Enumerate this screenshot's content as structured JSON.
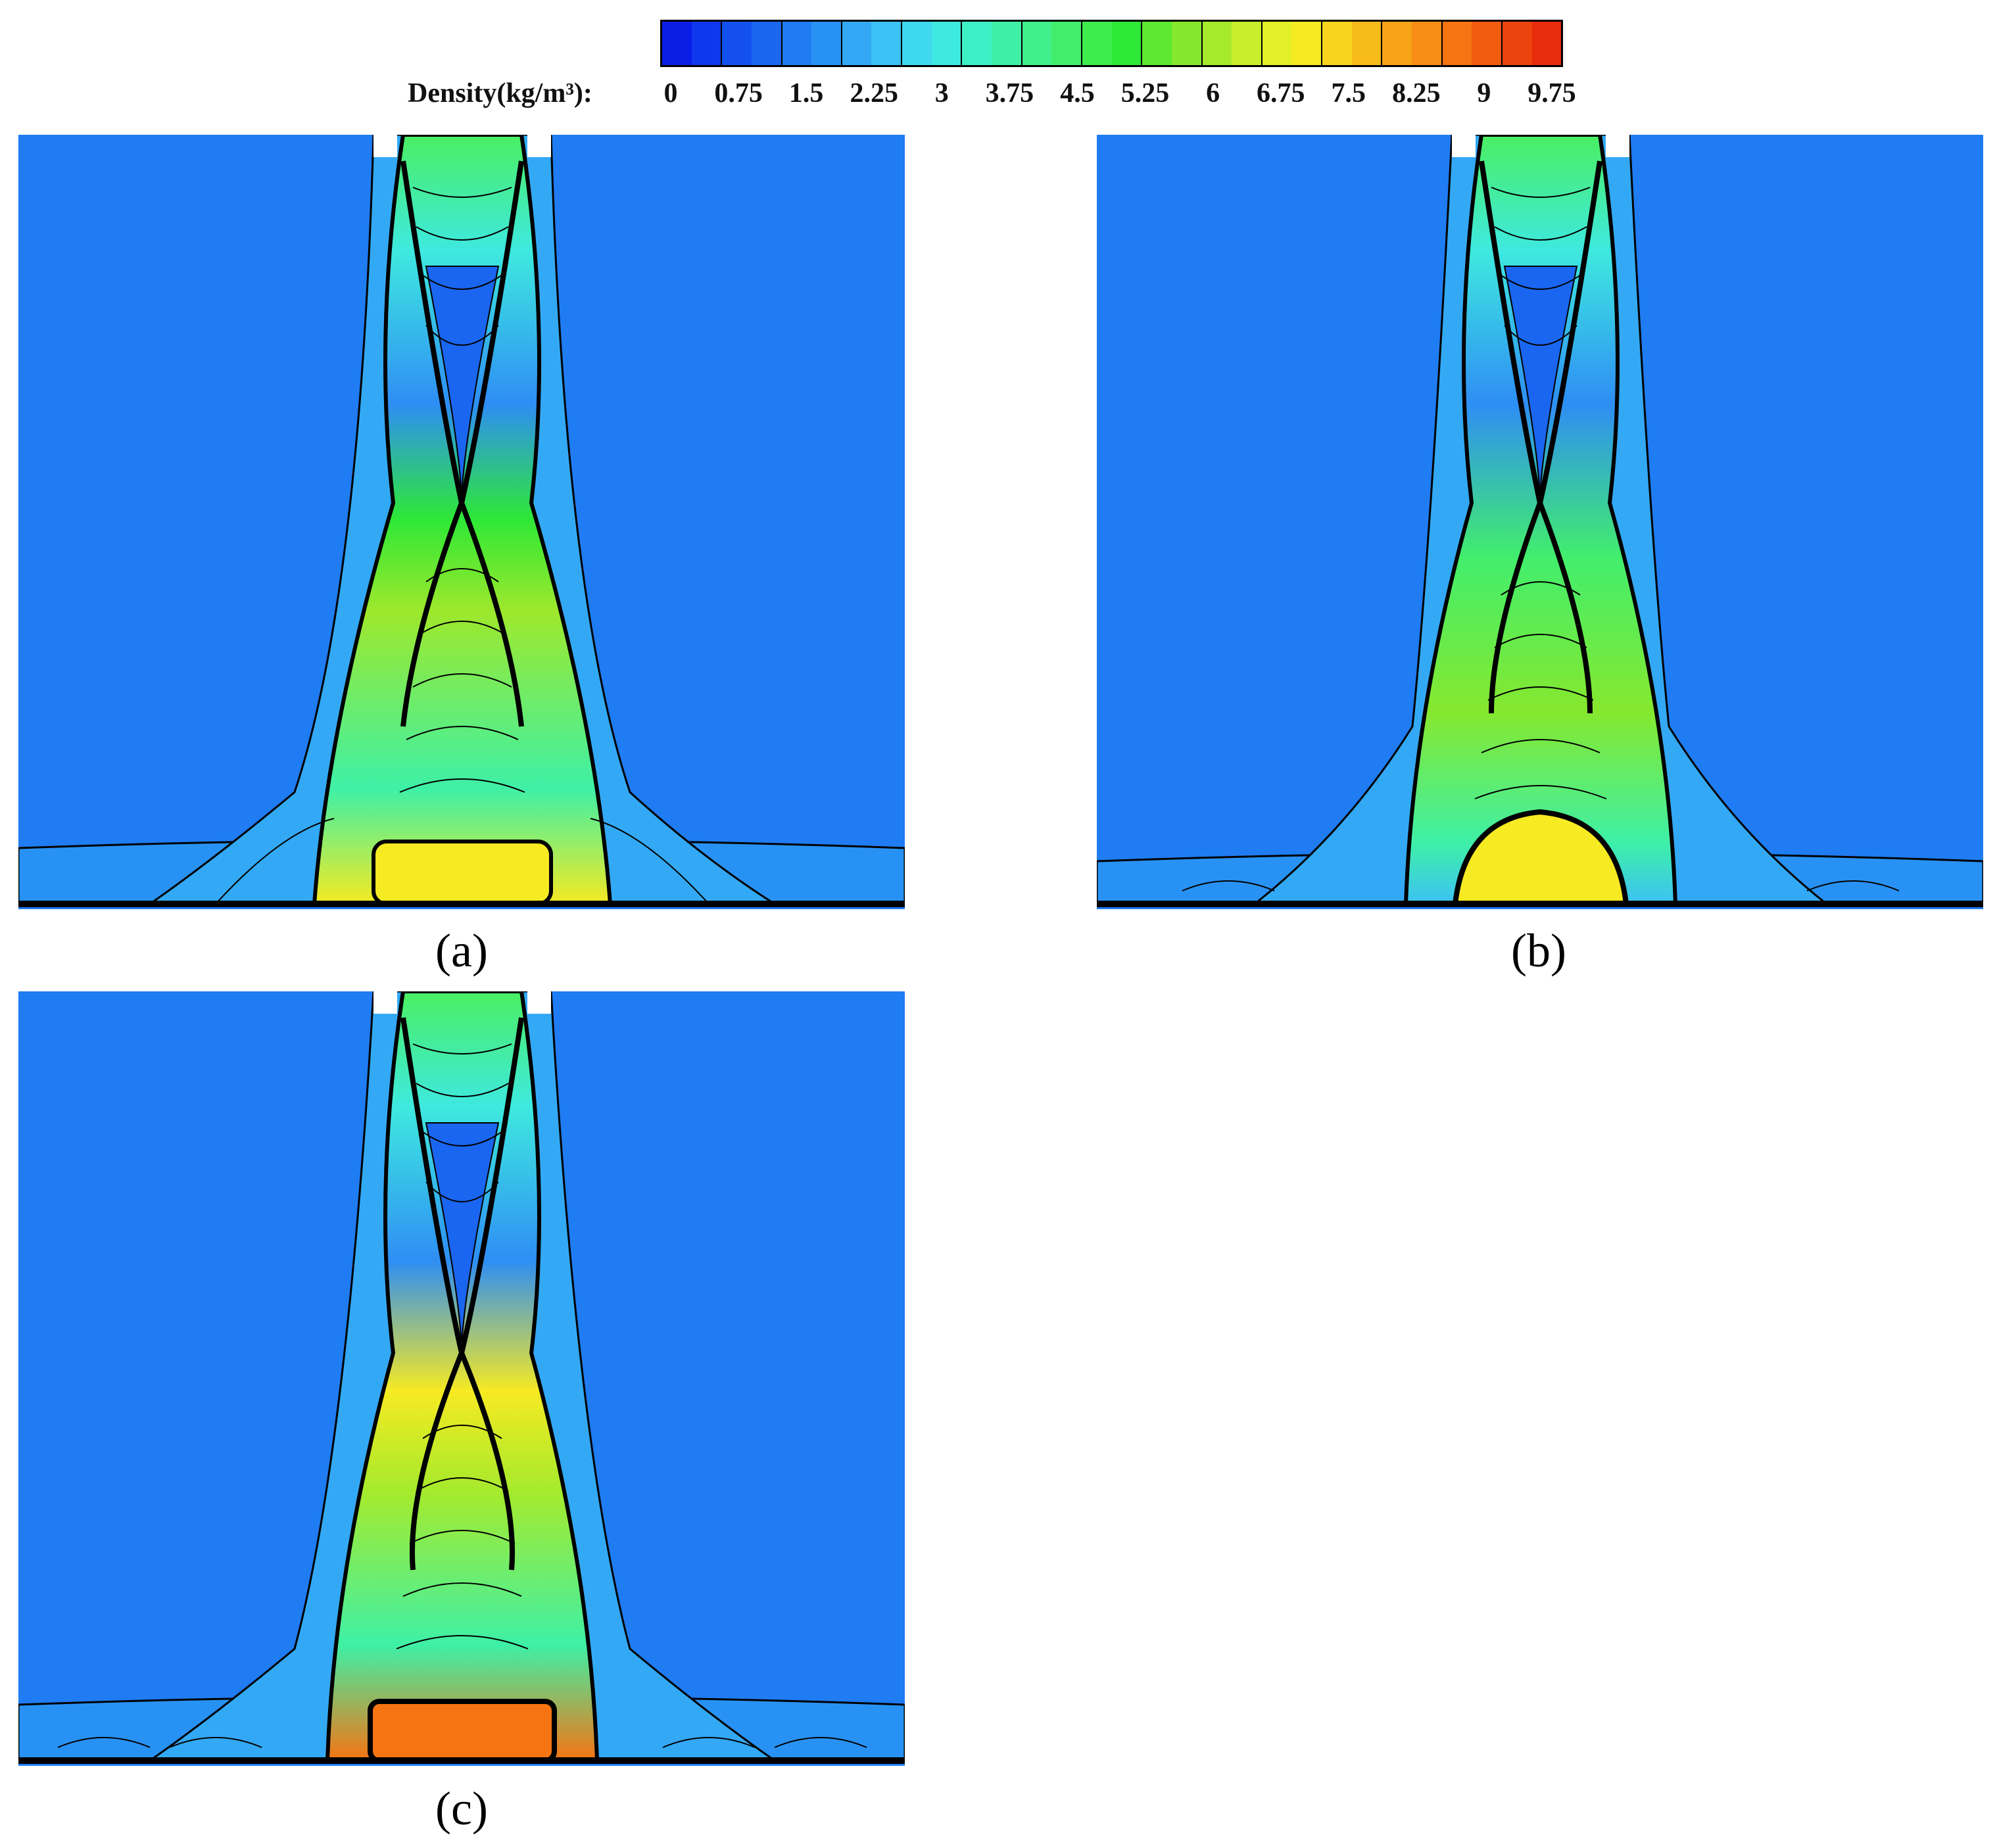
{
  "colorbar": {
    "label": "Density(kg/m³):",
    "ticks": [
      "0",
      "0.75",
      "1.5",
      "2.25",
      "3",
      "3.75",
      "4.5",
      "5.25",
      "6",
      "6.75",
      "7.5",
      "8.25",
      "9",
      "9.75"
    ],
    "colors": [
      "#0a1ee6",
      "#0f37ec",
      "#1450ef",
      "#1a66f0",
      "#1f7cf2",
      "#2892f4",
      "#33a9f5",
      "#3cc2f5",
      "#3fd9ef",
      "#3ee9df",
      "#3ef0c6",
      "#3ef0a6",
      "#40f08a",
      "#42ee6c",
      "#3eec4e",
      "#2ee836",
      "#5ee830",
      "#86e82e",
      "#a6ea2c",
      "#c6ee2a",
      "#e2f028",
      "#f6ea22",
      "#f8d41e",
      "#f8bc1a",
      "#f8a418",
      "#f88e16",
      "#f67412",
      "#f25c10",
      "#ec440e",
      "#e62c0c"
    ]
  },
  "panels": [
    {
      "label": "(a)"
    },
    {
      "label": "(b)"
    },
    {
      "label": "(c)"
    }
  ]
}
